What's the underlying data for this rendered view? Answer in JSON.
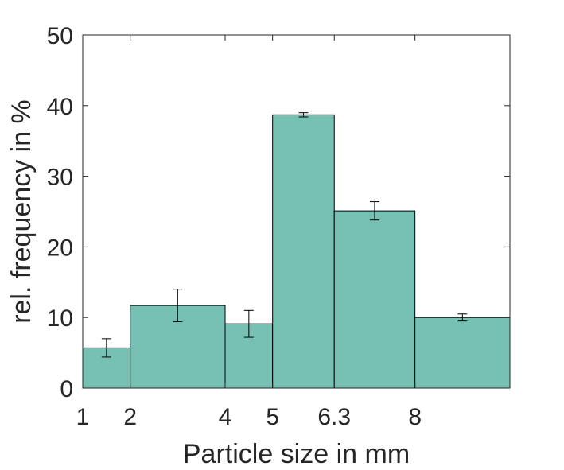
{
  "chart_data": {
    "type": "bar",
    "title": "",
    "xlabel": "Particle size in mm",
    "ylabel": "rel. frequency in %",
    "x_tick_labels": [
      "1",
      "2",
      "4",
      "5",
      "6.3",
      "8"
    ],
    "x_tick_values": [
      1,
      2,
      4,
      5,
      6.3,
      8
    ],
    "y_tick_labels": [
      "0",
      "10",
      "20",
      "30",
      "40",
      "50"
    ],
    "y_tick_values": [
      0,
      10,
      20,
      30,
      40,
      50
    ],
    "xlim": [
      1,
      10
    ],
    "ylim": [
      0,
      50
    ],
    "bins": [
      {
        "from": 1,
        "to": 2,
        "value": 5.7,
        "error": 1.3
      },
      {
        "from": 2,
        "to": 4,
        "value": 11.7,
        "error": 2.3
      },
      {
        "from": 4,
        "to": 5,
        "value": 9.1,
        "error": 1.9
      },
      {
        "from": 5,
        "to": 6.3,
        "value": 38.7,
        "error": 0.3
      },
      {
        "from": 6.3,
        "to": 8,
        "value": 25.1,
        "error": 1.3
      },
      {
        "from": 8,
        "to": 10,
        "value": 10.0,
        "error": 0.5
      }
    ],
    "bar_color": "#76c1b4",
    "bar_edge_color": "#000000",
    "grid": false
  }
}
